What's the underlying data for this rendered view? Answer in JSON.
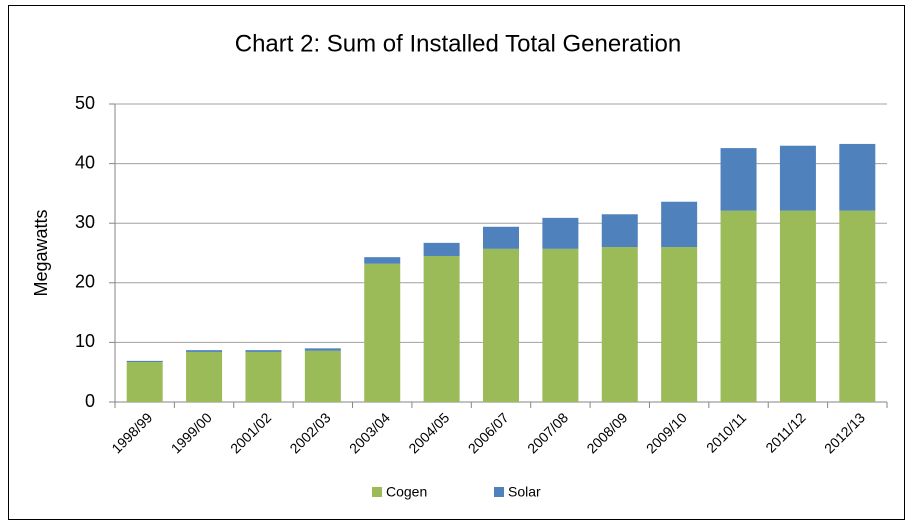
{
  "chart_data": {
    "type": "stacked_bar",
    "title": "Chart 2: Sum of Installed Total Generation",
    "y_label": "Megawatts",
    "categories": [
      "1998/99",
      "1999/00",
      "2001/02",
      "2002/03",
      "2003/04",
      "2004/05",
      "2006/07",
      "2007/08",
      "2008/09",
      "2009/10",
      "2010/11",
      "2011/12",
      "2012/13"
    ],
    "series": [
      {
        "name": "Cogen",
        "color": "#9bbb59",
        "values": [
          6.7,
          8.4,
          8.4,
          8.6,
          23.2,
          24.5,
          25.7,
          25.7,
          26.0,
          26.0,
          32.1,
          32.1,
          32.1
        ]
      },
      {
        "name": "Solar",
        "color": "#4f81bd",
        "values": [
          0.2,
          0.3,
          0.3,
          0.4,
          1.1,
          2.2,
          3.7,
          5.2,
          5.5,
          7.6,
          10.5,
          10.9,
          11.2
        ]
      }
    ],
    "ylim": [
      0,
      50
    ],
    "yticks": [
      0,
      10,
      20,
      30,
      40,
      50
    ],
    "grid": true,
    "legend": "bottom"
  }
}
